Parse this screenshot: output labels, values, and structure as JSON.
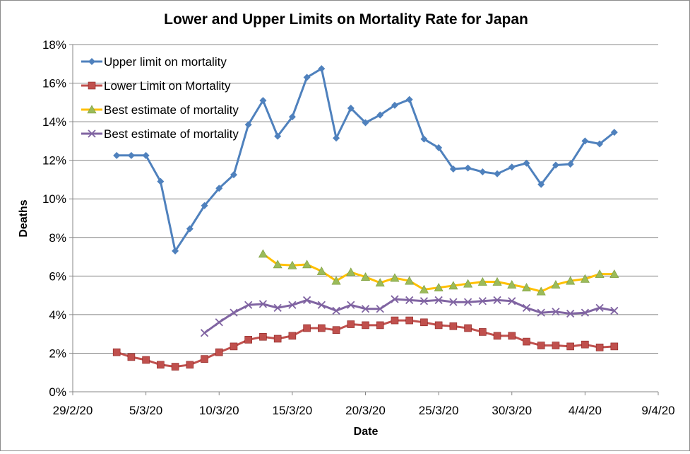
{
  "chart_data": {
    "type": "line",
    "title": "Lower and Upper Limits on Mortality Rate for Japan",
    "xlabel": "Date",
    "ylabel": "Deaths",
    "x_ticks": [
      "29/2/20",
      "5/3/20",
      "10/3/20",
      "15/3/20",
      "20/3/20",
      "25/3/20",
      "30/3/20",
      "4/4/20",
      "9/4/20"
    ],
    "y_ticks": [
      "0%",
      "2%",
      "4%",
      "6%",
      "8%",
      "10%",
      "12%",
      "14%",
      "16%",
      "18%"
    ],
    "xlim": [
      "29/2/20",
      "9/4/20"
    ],
    "ylim": [
      0,
      18
    ],
    "grid": "horizontal major gridlines",
    "legend_position": "top-left",
    "series": [
      {
        "name": "Upper limit on mortality",
        "color": "#4f81bd",
        "marker": "diamond",
        "x_start": "3/3/20",
        "values": [
          12.25,
          12.25,
          12.25,
          10.9,
          7.3,
          8.45,
          9.65,
          10.55,
          11.25,
          13.85,
          15.1,
          13.25,
          14.25,
          16.3,
          16.75,
          13.15,
          14.7,
          13.95,
          14.35,
          14.85,
          15.15,
          13.1,
          12.65,
          11.55,
          11.6,
          11.4,
          11.3,
          11.65,
          11.85,
          10.75,
          11.75,
          11.8,
          13.0,
          12.85,
          13.45
        ]
      },
      {
        "name": "Lower Limit on Mortality",
        "color": "#c0504d",
        "marker": "square",
        "x_start": "3/3/20",
        "values": [
          2.05,
          1.8,
          1.65,
          1.4,
          1.3,
          1.4,
          1.7,
          2.05,
          2.35,
          2.7,
          2.85,
          2.75,
          2.9,
          3.3,
          3.3,
          3.2,
          3.5,
          3.45,
          3.45,
          3.7,
          3.7,
          3.6,
          3.45,
          3.4,
          3.3,
          3.1,
          2.9,
          2.9,
          2.6,
          2.4,
          2.4,
          2.35,
          2.45,
          2.3,
          2.35
        ]
      },
      {
        "name": "Best estimate of mortality",
        "color": "#ffc000",
        "marker": "triangle",
        "x_start": "13/3/20",
        "values": [
          7.15,
          6.6,
          6.55,
          6.6,
          6.25,
          5.75,
          6.2,
          5.95,
          5.65,
          5.9,
          5.75,
          5.3,
          5.4,
          5.5,
          5.6,
          5.7,
          5.7,
          5.55,
          5.4,
          5.2,
          5.55,
          5.75,
          5.85,
          6.1,
          6.1
        ]
      },
      {
        "name": "Best estimate of mortality",
        "color": "#8064a2",
        "marker": "x",
        "x_start": "9/3/20",
        "values": [
          3.05,
          3.6,
          4.1,
          4.5,
          4.55,
          4.35,
          4.5,
          4.75,
          4.5,
          4.2,
          4.5,
          4.3,
          4.3,
          4.8,
          4.75,
          4.7,
          4.75,
          4.65,
          4.65,
          4.7,
          4.75,
          4.7,
          4.35,
          4.1,
          4.15,
          4.05,
          4.1,
          4.35,
          4.2
        ]
      }
    ]
  }
}
